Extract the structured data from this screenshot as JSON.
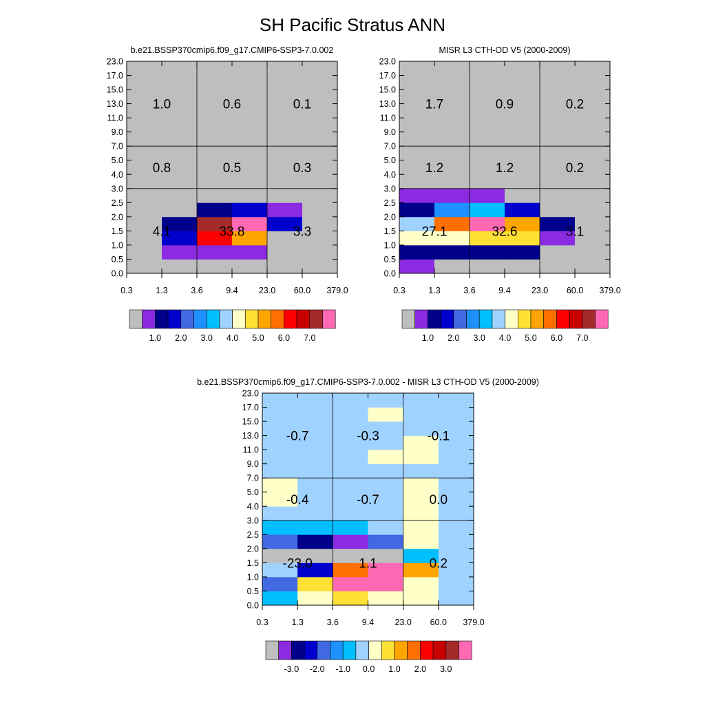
{
  "title": "SH Pacific Stratus ANN",
  "x_tick_labels": [
    "0.3",
    "1.3",
    "3.6",
    "9.4",
    "23.0",
    "60.0",
    "379.0"
  ],
  "y_tick_labels": [
    "0.0",
    "0.5",
    "1.0",
    "1.5",
    "2.0",
    "2.5",
    "3.0",
    "4.0",
    "5.0",
    "7.0",
    "9.0",
    "11.0",
    "13.0",
    "15.0",
    "17.0",
    "23.0"
  ],
  "colors": {
    "missing": "#bebebe",
    "levels": [
      "#bebebe",
      "#8a2be2",
      "#00008b",
      "#0000cd",
      "#4169e1",
      "#1e90ff",
      "#00bfff",
      "#a0d2ff",
      "#ffffc8",
      "#ffe135",
      "#ffa500",
      "#ff7000",
      "#ff0000",
      "#c80000",
      "#a52a2a",
      "#ff69b4"
    ]
  },
  "chart_data": [
    {
      "type": "heatmap",
      "title": "b.e21.BSSP370cmip6.f09_g17.CMIP6-SSP3-7.0.002",
      "x_bin_edges": [
        "0.3",
        "1.3",
        "3.6",
        "9.4",
        "23.0",
        "60.0",
        "379.0"
      ],
      "y_bin_edges": [
        "0.0",
        "0.5",
        "1.0",
        "1.5",
        "2.0",
        "2.5",
        "3.0",
        "4.0",
        "5.0",
        "7.0",
        "9.0",
        "11.0",
        "13.0",
        "15.0",
        "17.0",
        "23.0"
      ],
      "cells": [
        [
          0,
          0,
          0,
          0,
          0,
          0
        ],
        [
          0,
          1,
          1,
          1,
          0,
          0
        ],
        [
          0,
          3,
          12,
          10,
          0,
          0
        ],
        [
          0,
          2,
          14,
          15,
          3,
          0
        ],
        [
          0,
          0,
          2,
          3,
          1,
          0
        ],
        [
          0,
          0,
          0,
          0,
          0,
          0
        ],
        [
          0,
          0,
          0,
          0,
          0,
          0
        ],
        [
          0,
          0,
          0,
          0,
          0,
          0
        ],
        [
          0,
          0,
          0,
          0,
          0,
          0
        ],
        [
          0,
          0,
          0,
          0,
          0,
          0
        ],
        [
          0,
          0,
          0,
          0,
          0,
          0
        ],
        [
          0,
          0,
          0,
          0,
          0,
          0
        ],
        [
          0,
          0,
          0,
          0,
          0,
          0
        ],
        [
          0,
          0,
          0,
          0,
          0,
          0
        ],
        [
          0,
          0,
          0,
          0,
          0,
          0
        ]
      ],
      "annotations": [
        {
          "label": "1.0",
          "x_bin": [
            0.3,
            3.6
          ],
          "y_bin": [
            7.0,
            23.0
          ]
        },
        {
          "label": "0.6",
          "x_bin": [
            3.6,
            23.0
          ],
          "y_bin": [
            7.0,
            23.0
          ]
        },
        {
          "label": "0.1",
          "x_bin": [
            23.0,
            379.0
          ],
          "y_bin": [
            7.0,
            23.0
          ]
        },
        {
          "label": "0.8",
          "x_bin": [
            0.3,
            3.6
          ],
          "y_bin": [
            3.0,
            7.0
          ]
        },
        {
          "label": "0.5",
          "x_bin": [
            3.6,
            23.0
          ],
          "y_bin": [
            3.0,
            7.0
          ]
        },
        {
          "label": "0.3",
          "x_bin": [
            23.0,
            379.0
          ],
          "y_bin": [
            3.0,
            7.0
          ]
        },
        {
          "label": "4.1",
          "x_bin": [
            0.3,
            3.6
          ],
          "y_bin": [
            0.0,
            3.0
          ]
        },
        {
          "label": "33.8",
          "x_bin": [
            3.6,
            23.0
          ],
          "y_bin": [
            0.0,
            3.0
          ]
        },
        {
          "label": "3.3",
          "x_bin": [
            23.0,
            379.0
          ],
          "y_bin": [
            0.0,
            3.0
          ]
        }
      ],
      "colorbar_labels": [
        "1.0",
        "2.0",
        "3.0",
        "4.0",
        "5.0",
        "6.0",
        "7.0"
      ]
    },
    {
      "type": "heatmap",
      "title": "MISR L3 CTH-OD V5 (2000-2009)",
      "x_bin_edges": [
        "0.3",
        "1.3",
        "3.6",
        "9.4",
        "23.0",
        "60.0",
        "379.0"
      ],
      "y_bin_edges": [
        "0.0",
        "0.5",
        "1.0",
        "1.5",
        "2.0",
        "2.5",
        "3.0",
        "4.0",
        "5.0",
        "7.0",
        "9.0",
        "11.0",
        "13.0",
        "15.0",
        "17.0",
        "23.0"
      ],
      "cells": [
        [
          1,
          0,
          0,
          0,
          0,
          0
        ],
        [
          2,
          2,
          2,
          2,
          0,
          0
        ],
        [
          8,
          8,
          9,
          9,
          1,
          0
        ],
        [
          7,
          11,
          15,
          10,
          2,
          0
        ],
        [
          2,
          5,
          6,
          3,
          0,
          0
        ],
        [
          1,
          1,
          1,
          0,
          0,
          0
        ],
        [
          0,
          0,
          0,
          0,
          0,
          0
        ],
        [
          0,
          0,
          0,
          0,
          0,
          0
        ],
        [
          0,
          0,
          0,
          0,
          0,
          0
        ],
        [
          0,
          0,
          0,
          0,
          0,
          0
        ],
        [
          0,
          0,
          0,
          0,
          0,
          0
        ],
        [
          0,
          0,
          0,
          0,
          0,
          0
        ],
        [
          0,
          0,
          0,
          0,
          0,
          0
        ],
        [
          0,
          0,
          0,
          0,
          0,
          0
        ],
        [
          0,
          0,
          0,
          0,
          0,
          0
        ]
      ],
      "annotations": [
        {
          "label": "1.7",
          "x_bin": [
            0.3,
            3.6
          ],
          "y_bin": [
            7.0,
            23.0
          ]
        },
        {
          "label": "0.9",
          "x_bin": [
            3.6,
            23.0
          ],
          "y_bin": [
            7.0,
            23.0
          ]
        },
        {
          "label": "0.2",
          "x_bin": [
            23.0,
            379.0
          ],
          "y_bin": [
            7.0,
            23.0
          ]
        },
        {
          "label": "1.2",
          "x_bin": [
            0.3,
            3.6
          ],
          "y_bin": [
            3.0,
            7.0
          ]
        },
        {
          "label": "1.2",
          "x_bin": [
            3.6,
            23.0
          ],
          "y_bin": [
            3.0,
            7.0
          ]
        },
        {
          "label": "0.2",
          "x_bin": [
            23.0,
            379.0
          ],
          "y_bin": [
            3.0,
            7.0
          ]
        },
        {
          "label": "27.1",
          "x_bin": [
            0.3,
            3.6
          ],
          "y_bin": [
            0.0,
            3.0
          ]
        },
        {
          "label": "32.6",
          "x_bin": [
            3.6,
            23.0
          ],
          "y_bin": [
            0.0,
            3.0
          ]
        },
        {
          "label": "3.1",
          "x_bin": [
            23.0,
            379.0
          ],
          "y_bin": [
            0.0,
            3.0
          ]
        }
      ],
      "colorbar_labels": [
        "1.0",
        "2.0",
        "3.0",
        "4.0",
        "5.0",
        "6.0",
        "7.0"
      ]
    },
    {
      "type": "heatmap",
      "title": "b.e21.BSSP370cmip6.f09_g17.CMIP6-SSP3-7.0.002 - MISR L3 CTH-OD V5 (2000-2009)",
      "x_bin_edges": [
        "0.3",
        "1.3",
        "3.6",
        "9.4",
        "23.0",
        "60.0",
        "379.0"
      ],
      "y_bin_edges": [
        "0.0",
        "0.5",
        "1.0",
        "1.5",
        "2.0",
        "2.5",
        "3.0",
        "4.0",
        "5.0",
        "7.0",
        "9.0",
        "11.0",
        "13.0",
        "15.0",
        "17.0",
        "23.0"
      ],
      "cells": [
        [
          6,
          8,
          9,
          8,
          8,
          7
        ],
        [
          4,
          9,
          15,
          15,
          8,
          7
        ],
        [
          7,
          3,
          11,
          15,
          10,
          7
        ],
        [
          0,
          0,
          0,
          0,
          6,
          7
        ],
        [
          4,
          2,
          1,
          4,
          8,
          7
        ],
        [
          6,
          6,
          6,
          7,
          8,
          7
        ],
        [
          7,
          7,
          7,
          7,
          8,
          7
        ],
        [
          8,
          7,
          7,
          7,
          8,
          7
        ],
        [
          8,
          7,
          7,
          7,
          8,
          7
        ],
        [
          7,
          7,
          7,
          7,
          7,
          7
        ],
        [
          7,
          7,
          7,
          8,
          8,
          7
        ],
        [
          7,
          7,
          7,
          7,
          8,
          7
        ],
        [
          7,
          7,
          7,
          7,
          7,
          7
        ],
        [
          7,
          7,
          7,
          8,
          7,
          7
        ],
        [
          7,
          7,
          7,
          7,
          7,
          7
        ]
      ],
      "annotations": [
        {
          "label": "-0.7",
          "x_bin": [
            0.3,
            3.6
          ],
          "y_bin": [
            7.0,
            23.0
          ]
        },
        {
          "label": "-0.3",
          "x_bin": [
            3.6,
            23.0
          ],
          "y_bin": [
            7.0,
            23.0
          ]
        },
        {
          "label": "-0.1",
          "x_bin": [
            23.0,
            379.0
          ],
          "y_bin": [
            7.0,
            23.0
          ]
        },
        {
          "label": "-0.4",
          "x_bin": [
            0.3,
            3.6
          ],
          "y_bin": [
            3.0,
            7.0
          ]
        },
        {
          "label": "-0.7",
          "x_bin": [
            3.6,
            23.0
          ],
          "y_bin": [
            3.0,
            7.0
          ]
        },
        {
          "label": "0.0",
          "x_bin": [
            23.0,
            379.0
          ],
          "y_bin": [
            3.0,
            7.0
          ]
        },
        {
          "label": "-23.0",
          "x_bin": [
            0.3,
            3.6
          ],
          "y_bin": [
            0.0,
            3.0
          ]
        },
        {
          "label": "1.1",
          "x_bin": [
            3.6,
            23.0
          ],
          "y_bin": [
            0.0,
            3.0
          ]
        },
        {
          "label": "0.2",
          "x_bin": [
            23.0,
            379.0
          ],
          "y_bin": [
            0.0,
            3.0
          ]
        }
      ],
      "colorbar_labels": [
        "-3.0",
        "-2.0",
        "-1.0",
        "0.0",
        "1.0",
        "2.0",
        "3.0"
      ]
    }
  ]
}
